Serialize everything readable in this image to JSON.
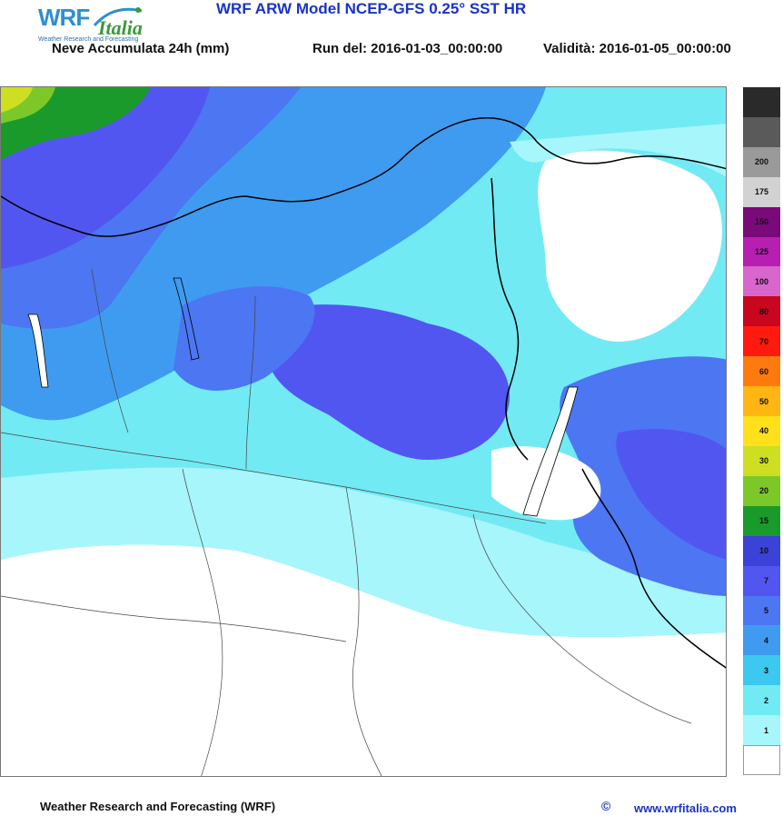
{
  "header": {
    "title": "WRF ARW Model NCEP-GFS 0.25° SST HR",
    "field_label": "Neve Accumulata 24h (mm)",
    "run_label": "Run del: 2016-01-03_00:00:00",
    "validity_label": "Validità: 2016-01-05_00:00:00"
  },
  "logo": {
    "brand_a": "WRF",
    "brand_b": "Italia",
    "tagline": "Weather Research and Forecasting"
  },
  "legend": {
    "bins": [
      {
        "label": "",
        "color": "#ffffff"
      },
      {
        "label": "1",
        "color": "#a6f6fb"
      },
      {
        "label": "2",
        "color": "#72eaf4"
      },
      {
        "label": "3",
        "color": "#3cc8ef"
      },
      {
        "label": "4",
        "color": "#3f9bf0"
      },
      {
        "label": "5",
        "color": "#4c76f2"
      },
      {
        "label": "7",
        "color": "#5256f0"
      },
      {
        "label": "10",
        "color": "#3a42d8"
      },
      {
        "label": "15",
        "color": "#1a9a2a"
      },
      {
        "label": "20",
        "color": "#7cc828"
      },
      {
        "label": "30",
        "color": "#cede20"
      },
      {
        "label": "40",
        "color": "#ffe01a"
      },
      {
        "label": "50",
        "color": "#ffb612"
      },
      {
        "label": "60",
        "color": "#ff7a0e"
      },
      {
        "label": "70",
        "color": "#ff1a10"
      },
      {
        "label": "80",
        "color": "#c8061e"
      },
      {
        "label": "100",
        "color": "#d866cc"
      },
      {
        "label": "125",
        "color": "#b81eb2"
      },
      {
        "label": "150",
        "color": "#7a0a7a"
      },
      {
        "label": "175",
        "color": "#d2d2d2"
      },
      {
        "label": "200",
        "color": "#9a9a9a"
      },
      {
        "label": "",
        "color": "#5a5a5a"
      },
      {
        "label": "",
        "color": "#2a2a2a"
      }
    ]
  },
  "map": {
    "colors": {
      "none": "#ffffff",
      "l1": "#a6f6fb",
      "l2": "#72eaf4",
      "l3": "#3cc8ef",
      "l4": "#3f9bf0",
      "l5": "#4c76f2",
      "l7": "#5256f0",
      "l10": "#3a42d8",
      "l15": "#1a9a2a",
      "l20": "#7cc828",
      "l30": "#cede20",
      "l40": "#ffe01a",
      "border": "#000000",
      "admin": "#444444"
    }
  },
  "footer": {
    "left": "Weather Research and Forecasting (WRF)",
    "copyright": "©",
    "url": "www.wrfitalia.com"
  }
}
